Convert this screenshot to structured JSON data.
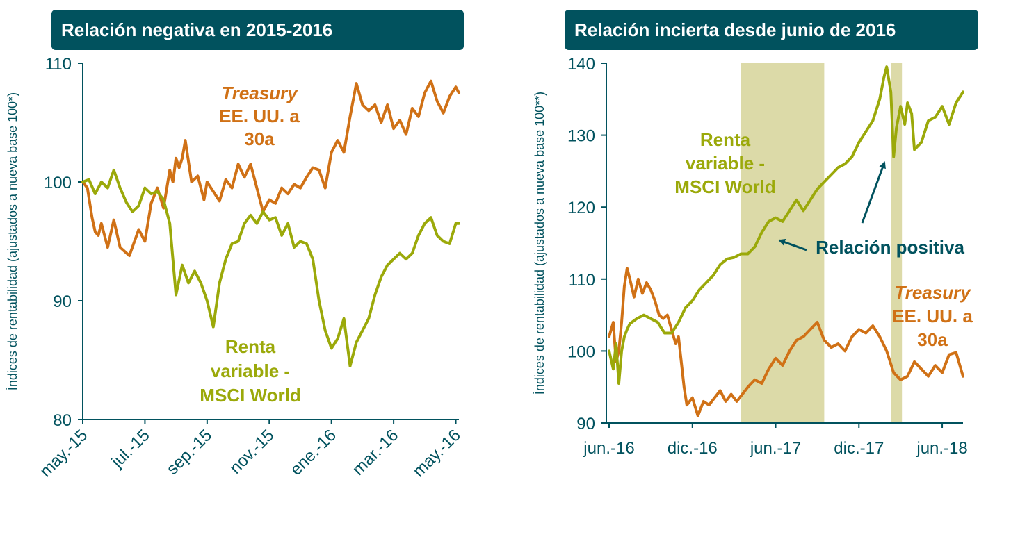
{
  "chart_data": [
    {
      "type": "line",
      "title": "Relación negativa en 2015-2016",
      "ylabel": "Índices de rentabilidad (ajustados a nueva base 100*)",
      "ylim": [
        80,
        110
      ],
      "yticks": [
        "80",
        "90",
        "100",
        "110"
      ],
      "xticks": [
        "may.-15",
        "jul.-15",
        "sep.-15",
        "nov.-15",
        "ene.-16",
        "mar.-16",
        "may.-16"
      ],
      "xrange_months": [
        0,
        12.1
      ],
      "series": [
        {
          "name": "Treasury EE. UU. a 30a",
          "color": "#d07116",
          "x": [
            0,
            0.15,
            0.3,
            0.4,
            0.5,
            0.6,
            0.8,
            1.0,
            1.2,
            1.5,
            1.8,
            2.0,
            2.2,
            2.4,
            2.6,
            2.8,
            2.9,
            3.0,
            3.1,
            3.2,
            3.3,
            3.5,
            3.7,
            3.9,
            4.0,
            4.2,
            4.4,
            4.6,
            4.8,
            5.0,
            5.2,
            5.4,
            5.6,
            5.8,
            6.0,
            6.2,
            6.4,
            6.6,
            6.8,
            7.0,
            7.2,
            7.4,
            7.6,
            7.8,
            8.0,
            8.2,
            8.4,
            8.6,
            8.8,
            9.0,
            9.2,
            9.4,
            9.6,
            9.8,
            10.0,
            10.2,
            10.4,
            10.6,
            10.8,
            11.0,
            11.2,
            11.4,
            11.6,
            11.8,
            12.0,
            12.1
          ],
          "values": [
            100,
            99.5,
            97,
            95.8,
            95.5,
            96.5,
            94.5,
            96.8,
            94.5,
            93.8,
            96,
            95,
            98.2,
            99.5,
            97.8,
            101,
            100,
            102,
            101.2,
            102,
            103.5,
            100,
            100.5,
            98.5,
            100,
            99.2,
            98.4,
            100.2,
            99.5,
            101.5,
            100.4,
            101.5,
            99.5,
            97.5,
            98.5,
            98.2,
            99.5,
            99,
            99.8,
            99.5,
            100.4,
            101.2,
            101,
            99.5,
            102.5,
            103.5,
            102.5,
            105.5,
            108.3,
            106.5,
            106,
            106.5,
            105,
            106.5,
            104.5,
            105.2,
            104,
            106.2,
            105.5,
            107.5,
            108.5,
            106.8,
            105.8,
            107.2,
            108,
            107.5
          ]
        },
        {
          "name": "Renta variable - MSCI World",
          "color": "#9ba90a",
          "x": [
            0,
            0.2,
            0.4,
            0.6,
            0.8,
            1.0,
            1.2,
            1.4,
            1.6,
            1.8,
            2.0,
            2.2,
            2.4,
            2.6,
            2.8,
            3.0,
            3.2,
            3.4,
            3.6,
            3.8,
            4.0,
            4.2,
            4.4,
            4.6,
            4.8,
            5.0,
            5.2,
            5.4,
            5.6,
            5.8,
            6.0,
            6.2,
            6.4,
            6.6,
            6.8,
            7.0,
            7.2,
            7.4,
            7.6,
            7.8,
            8.0,
            8.2,
            8.4,
            8.6,
            8.8,
            9.0,
            9.2,
            9.4,
            9.6,
            9.8,
            10.0,
            10.2,
            10.4,
            10.6,
            10.8,
            11.0,
            11.2,
            11.4,
            11.6,
            11.8,
            12.0,
            12.1
          ],
          "values": [
            100,
            100.2,
            99,
            100,
            99.5,
            101,
            99.5,
            98.3,
            97.5,
            98,
            99.5,
            99,
            99.2,
            98.5,
            96.5,
            90.5,
            93,
            91.5,
            92.5,
            91.5,
            90,
            87.8,
            91.5,
            93.5,
            94.8,
            95,
            96.5,
            97.2,
            96.5,
            97.5,
            96.8,
            97,
            95.5,
            96.5,
            94.5,
            95,
            94.8,
            93.5,
            90,
            87.5,
            86,
            86.8,
            88.5,
            84.5,
            86.5,
            87.5,
            88.5,
            90.5,
            92,
            93,
            93.5,
            94,
            93.5,
            94,
            95.5,
            96.5,
            97,
            95.5,
            95,
            94.8,
            96.5,
            96.5
          ]
        }
      ],
      "annotations": [
        {
          "lines": [
            "Treasury",
            "EE. UU. a",
            "30a"
          ]
        },
        {
          "lines": [
            "Renta",
            "variable -",
            "MSCI World"
          ]
        }
      ]
    },
    {
      "type": "line",
      "title": "Relación incierta desde junio de 2016",
      "ylabel": "Índices de rentabilidad (ajustados a nueva base 100**)",
      "ylim": [
        90,
        140
      ],
      "yticks": [
        "90",
        "100",
        "110",
        "120",
        "130",
        "140"
      ],
      "xticks": [
        "jun.-16",
        "dic.-16",
        "jun.-17",
        "dic.-17",
        "jun.-18"
      ],
      "xrange_months": [
        -0.2,
        25.5
      ],
      "shaded_ranges": [
        [
          9.5,
          15.5
        ],
        [
          20.3,
          21.1
        ]
      ],
      "series": [
        {
          "name": "Treasury EE. UU. a 30a",
          "color": "#d07116",
          "x": [
            0,
            0.3,
            0.5,
            0.7,
            0.9,
            1.1,
            1.3,
            1.5,
            1.8,
            2.1,
            2.4,
            2.7,
            3.0,
            3.3,
            3.6,
            3.9,
            4.2,
            4.5,
            4.8,
            5.0,
            5.2,
            5.4,
            5.6,
            6.0,
            6.4,
            6.8,
            7.2,
            7.6,
            8.0,
            8.4,
            8.8,
            9.2,
            9.6,
            10.0,
            10.5,
            11.0,
            11.5,
            12.0,
            12.5,
            13.0,
            13.5,
            14.0,
            14.5,
            15.0,
            15.5,
            16.0,
            16.5,
            17.0,
            17.5,
            18.0,
            18.5,
            19.0,
            19.5,
            20.0,
            20.5,
            21.0,
            21.5,
            22.0,
            22.5,
            23.0,
            23.5,
            24.0,
            24.5,
            25.0,
            25.5
          ],
          "values": [
            102,
            104,
            98.5,
            100,
            104,
            109,
            111.5,
            110,
            107.5,
            110,
            108,
            109.5,
            108.5,
            107,
            105,
            104.5,
            105,
            103,
            101,
            102,
            98.5,
            95,
            92.5,
            93.5,
            91,
            93,
            92.5,
            93.5,
            94.5,
            93,
            94,
            93,
            94,
            95,
            96,
            95.5,
            97.5,
            99,
            98,
            100,
            101.5,
            102,
            103,
            104,
            101.5,
            100.5,
            101,
            100,
            102,
            103,
            102.5,
            103.5,
            102,
            100,
            97,
            96,
            96.5,
            98.5,
            97.5,
            96.5,
            98,
            97,
            99.5,
            99.8,
            96.5
          ]
        },
        {
          "name": "Renta variable - MSCI World",
          "color": "#9ba90a",
          "x": [
            0,
            0.3,
            0.5,
            0.7,
            0.9,
            1.1,
            1.3,
            1.5,
            2.0,
            2.5,
            3.0,
            3.5,
            4.0,
            4.5,
            5.0,
            5.5,
            6.0,
            6.5,
            7.0,
            7.5,
            8.0,
            8.5,
            9.0,
            9.5,
            10.0,
            10.5,
            11.0,
            11.5,
            12.0,
            12.5,
            13.0,
            13.5,
            14.0,
            14.5,
            15.0,
            15.5,
            16.0,
            16.5,
            17.0,
            17.5,
            18.0,
            18.5,
            19.0,
            19.5,
            19.8,
            20.0,
            20.3,
            20.5,
            20.7,
            21.0,
            21.3,
            21.5,
            21.8,
            22.0,
            22.5,
            23.0,
            23.5,
            24.0,
            24.5,
            25.0,
            25.5
          ],
          "values": [
            100,
            97.5,
            101,
            95.5,
            100,
            102,
            103,
            103.8,
            104.5,
            105,
            104.5,
            104,
            102.5,
            102.5,
            104,
            106,
            107,
            108.5,
            109.5,
            110.5,
            112,
            112.8,
            113,
            113.5,
            113.5,
            114.5,
            116.5,
            118,
            118.5,
            118,
            119.5,
            121,
            119.5,
            121,
            122.5,
            123.5,
            124.5,
            125.5,
            126,
            127,
            129,
            130.5,
            132,
            135,
            138,
            139.5,
            136,
            127,
            131,
            134,
            131.5,
            134.5,
            133,
            128,
            129,
            132,
            132.5,
            134,
            131.5,
            134.5,
            136
          ]
        }
      ],
      "annotations": [
        {
          "lines": [
            "Renta",
            "variable -",
            "MSCI World"
          ]
        },
        {
          "lines": [
            "Relación positiva"
          ]
        },
        {
          "lines": [
            "Treasury",
            "EE. UU. a",
            "30a"
          ]
        }
      ]
    }
  ]
}
